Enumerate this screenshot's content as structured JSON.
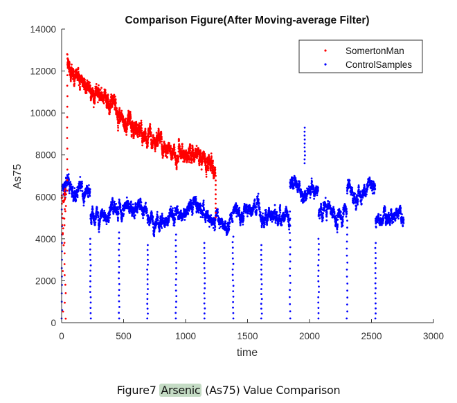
{
  "chart_data": {
    "type": "scatter",
    "title": "Comparison Figure(After Moving-average Filter)",
    "xlabel": "time",
    "ylabel": "As75",
    "xlim": [
      0,
      3000
    ],
    "ylim": [
      0,
      14000
    ],
    "xticks": [
      "0",
      "500",
      "1000",
      "1500",
      "2000",
      "2500",
      "3000"
    ],
    "yticks": [
      "0",
      "2000",
      "4000",
      "6000",
      "8000",
      "10000",
      "12000",
      "14000"
    ],
    "legend": {
      "placement": "top-right",
      "entries": [
        "SomertonMan",
        "ControlSamples"
      ]
    },
    "series": [
      {
        "name": "SomertonMan",
        "color": "#ff0000",
        "x": [
          0,
          10,
          20,
          30,
          40,
          45,
          50,
          100,
          150,
          200,
          250,
          300,
          350,
          400,
          450,
          500,
          550,
          600,
          650,
          700,
          750,
          800,
          850,
          900,
          950,
          1000,
          1050,
          1100,
          1150,
          1200,
          1240
        ],
        "y": [
          300,
          4000,
          5500,
          6000,
          6300,
          13500,
          12300,
          11700,
          11600,
          11300,
          11000,
          10800,
          10700,
          10500,
          10100,
          9500,
          9400,
          9300,
          9200,
          8900,
          8800,
          8600,
          8300,
          8200,
          8000,
          8000,
          7900,
          7800,
          7700,
          7600,
          7300
        ],
        "spread": 500
      },
      {
        "name": "ControlSamples",
        "color": "#0000ff",
        "segments": [
          {
            "start": 0,
            "end": 230,
            "level": 6300
          },
          {
            "start": 230,
            "end": 460,
            "level": 5200
          },
          {
            "start": 460,
            "end": 690,
            "level": 5500
          },
          {
            "start": 690,
            "end": 920,
            "level": 4900
          },
          {
            "start": 920,
            "end": 1150,
            "level": 5400
          },
          {
            "start": 1150,
            "end": 1380,
            "level": 5000
          },
          {
            "start": 1380,
            "end": 1610,
            "level": 5300
          },
          {
            "start": 1610,
            "end": 1840,
            "level": 4900
          },
          {
            "start": 1840,
            "end": 2070,
            "level": 6500
          },
          {
            "start": 2070,
            "end": 2300,
            "level": 5200
          },
          {
            "start": 2300,
            "end": 2530,
            "level": 6400
          },
          {
            "start": 2530,
            "end": 2760,
            "level": 5000
          }
        ],
        "dropout_min": 200,
        "spike": {
          "x": 1960,
          "y": 9300
        },
        "spread": 450
      }
    ]
  },
  "caption": {
    "prefix": "Figure7 ",
    "highlight": "Arsenic",
    "suffix": " (As75) Value Comparison"
  }
}
